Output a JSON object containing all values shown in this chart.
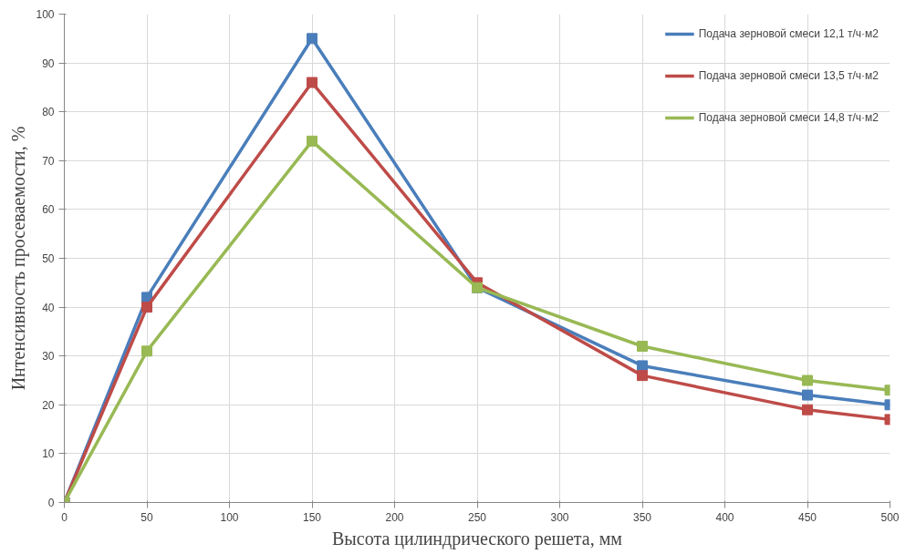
{
  "chart_data": {
    "type": "line",
    "xlabel": "Высота цилиндрического решета, мм",
    "ylabel": "Интенсивность просеваемости, %",
    "x": [
      0,
      50,
      150,
      250,
      350,
      450,
      500
    ],
    "series": [
      {
        "name": "Подача зерновой смеси 12,1 т/ч·м2",
        "color": "#4a7ebb",
        "values": [
          0,
          42,
          95,
          44,
          28,
          22,
          20
        ]
      },
      {
        "name": "Подача зерновой смеси 13,5 т/ч·м2",
        "color": "#be4b48",
        "values": [
          0,
          40,
          86,
          45,
          26,
          19,
          17
        ]
      },
      {
        "name": "Подача зерновой смеси 14,8 т/ч·м2",
        "color": "#98b954",
        "values": [
          0,
          31,
          74,
          44,
          32,
          25,
          23
        ]
      }
    ],
    "xlim": [
      0,
      500
    ],
    "xticks": [
      0,
      50,
      100,
      150,
      200,
      250,
      300,
      350,
      400,
      450,
      500
    ],
    "ylim": [
      0,
      100
    ],
    "yticks": [
      0,
      10,
      20,
      30,
      40,
      50,
      60,
      70,
      80,
      90,
      100
    ],
    "grid": true,
    "legend": "top right",
    "marker": "square",
    "line_style": "solid"
  }
}
